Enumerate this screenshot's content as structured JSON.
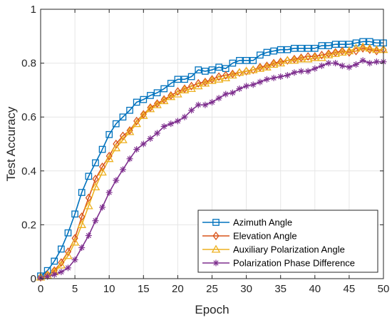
{
  "chart_data": {
    "type": "line",
    "title": "",
    "xlabel": "Epoch",
    "ylabel": "Test Accuracy",
    "xlim": [
      0,
      50
    ],
    "ylim": [
      0,
      1
    ],
    "xticks": [
      "0",
      "5",
      "10",
      "15",
      "20",
      "25",
      "30",
      "35",
      "40",
      "45",
      "50"
    ],
    "yticks": [
      "0",
      "0.2",
      "0.4",
      "0.6",
      "0.8",
      "1"
    ],
    "grid": true,
    "legend_position": "bottom-right",
    "x": [
      0,
      1,
      2,
      3,
      4,
      5,
      6,
      7,
      8,
      9,
      10,
      11,
      12,
      13,
      14,
      15,
      16,
      17,
      18,
      19,
      20,
      21,
      22,
      23,
      24,
      25,
      26,
      27,
      28,
      29,
      30,
      31,
      32,
      33,
      34,
      35,
      36,
      37,
      38,
      39,
      40,
      41,
      42,
      43,
      44,
      45,
      46,
      47,
      48,
      49,
      50
    ],
    "series": [
      {
        "name": "Azimuth Angle",
        "color": "#0072BD",
        "marker": "square",
        "values": [
          0.01,
          0.03,
          0.065,
          0.11,
          0.17,
          0.24,
          0.32,
          0.38,
          0.43,
          0.48,
          0.535,
          0.575,
          0.6,
          0.625,
          0.655,
          0.665,
          0.68,
          0.69,
          0.705,
          0.725,
          0.74,
          0.74,
          0.75,
          0.775,
          0.77,
          0.775,
          0.785,
          0.78,
          0.8,
          0.81,
          0.81,
          0.81,
          0.83,
          0.84,
          0.845,
          0.85,
          0.85,
          0.855,
          0.855,
          0.855,
          0.855,
          0.865,
          0.865,
          0.87,
          0.87,
          0.87,
          0.875,
          0.88,
          0.88,
          0.875,
          0.875
        ]
      },
      {
        "name": "Elevation Angle",
        "color": "#D95319",
        "marker": "diamond",
        "values": [
          0.005,
          0.015,
          0.03,
          0.06,
          0.1,
          0.15,
          0.23,
          0.3,
          0.37,
          0.415,
          0.455,
          0.5,
          0.53,
          0.55,
          0.585,
          0.61,
          0.635,
          0.65,
          0.665,
          0.68,
          0.695,
          0.705,
          0.715,
          0.725,
          0.73,
          0.74,
          0.75,
          0.755,
          0.76,
          0.765,
          0.77,
          0.775,
          0.785,
          0.79,
          0.8,
          0.805,
          0.81,
          0.815,
          0.82,
          0.825,
          0.825,
          0.83,
          0.835,
          0.84,
          0.845,
          0.84,
          0.845,
          0.855,
          0.85,
          0.845,
          0.85
        ]
      },
      {
        "name": "Auxiliary Polarization Angle",
        "color": "#EDB120",
        "marker": "triangle",
        "values": [
          0.005,
          0.012,
          0.025,
          0.05,
          0.085,
          0.135,
          0.2,
          0.27,
          0.34,
          0.395,
          0.445,
          0.485,
          0.515,
          0.545,
          0.575,
          0.605,
          0.63,
          0.645,
          0.66,
          0.675,
          0.685,
          0.7,
          0.705,
          0.715,
          0.725,
          0.735,
          0.74,
          0.745,
          0.755,
          0.765,
          0.77,
          0.775,
          0.78,
          0.785,
          0.795,
          0.8,
          0.81,
          0.81,
          0.815,
          0.815,
          0.82,
          0.82,
          0.83,
          0.835,
          0.84,
          0.845,
          0.855,
          0.86,
          0.855,
          0.85,
          0.85
        ]
      },
      {
        "name": "Polarization Phase Difference",
        "color": "#7E2F8E",
        "marker": "star",
        "values": [
          0.003,
          0.008,
          0.015,
          0.025,
          0.04,
          0.07,
          0.115,
          0.16,
          0.215,
          0.265,
          0.32,
          0.365,
          0.405,
          0.445,
          0.48,
          0.5,
          0.52,
          0.54,
          0.565,
          0.575,
          0.585,
          0.6,
          0.625,
          0.645,
          0.645,
          0.655,
          0.67,
          0.685,
          0.69,
          0.705,
          0.715,
          0.72,
          0.73,
          0.74,
          0.745,
          0.75,
          0.755,
          0.765,
          0.77,
          0.77,
          0.78,
          0.79,
          0.8,
          0.8,
          0.79,
          0.785,
          0.795,
          0.81,
          0.8,
          0.805,
          0.805
        ]
      }
    ]
  }
}
